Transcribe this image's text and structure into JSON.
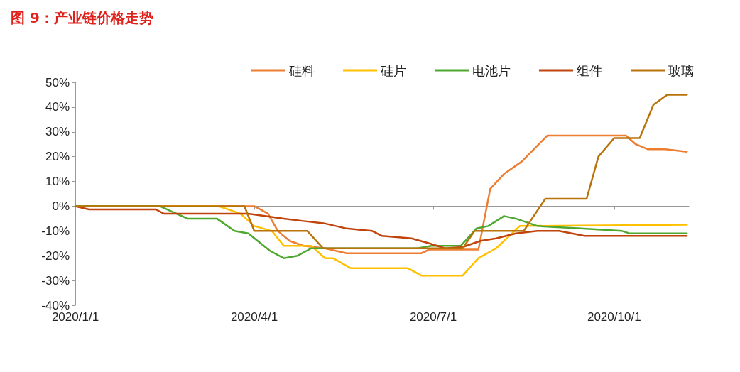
{
  "chart_data": {
    "type": "line",
    "title": "图 9：产业链价格走势",
    "xlim": [
      "2020-01-01",
      "2020-11-08"
    ],
    "xticks": [
      {
        "value": "2020-01-01",
        "label": "2020/1/1"
      },
      {
        "value": "2020-04-01",
        "label": "2020/4/1"
      },
      {
        "value": "2020-07-01",
        "label": "2020/7/1"
      },
      {
        "value": "2020-10-01",
        "label": "2020/10/1"
      }
    ],
    "ylim": [
      -40,
      50
    ],
    "yticks": [
      {
        "value": -40,
        "label": "-40%"
      },
      {
        "value": -30,
        "label": "-30%"
      },
      {
        "value": -20,
        "label": "-20%"
      },
      {
        "value": -10,
        "label": "-10%"
      },
      {
        "value": 0,
        "label": "0%"
      },
      {
        "value": 10,
        "label": "10%"
      },
      {
        "value": 20,
        "label": "20%"
      },
      {
        "value": 30,
        "label": "30%"
      },
      {
        "value": 40,
        "label": "40%"
      },
      {
        "value": 50,
        "label": "50%"
      }
    ],
    "legend": "top right",
    "marker": "none",
    "line_style": "solid",
    "series": [
      {
        "name": "硅料",
        "color": "#ed7d31",
        "x": [
          "2020-01-01",
          "2020-04-01",
          "2020-04-08",
          "2020-04-13",
          "2020-04-19",
          "2020-04-26",
          "2020-05-07",
          "2020-05-18",
          "2020-06-25",
          "2020-06-29",
          "2020-07-24",
          "2020-07-30",
          "2020-08-06",
          "2020-08-15",
          "2020-08-28",
          "2020-10-07",
          "2020-10-12",
          "2020-10-18",
          "2020-10-27",
          "2020-11-07"
        ],
        "values": [
          0,
          0,
          -3,
          -10,
          -14,
          -16,
          -17,
          -19,
          -19,
          -17.5,
          -17.5,
          7,
          13,
          18,
          28.5,
          28.5,
          25,
          23,
          23,
          22
        ]
      },
      {
        "name": "硅片",
        "color": "#ffc000",
        "x": [
          "2020-01-01",
          "2020-03-14",
          "2020-03-25",
          "2020-04-01",
          "2020-04-10",
          "2020-04-16",
          "2020-04-30",
          "2020-05-07",
          "2020-05-11",
          "2020-05-20",
          "2020-06-18",
          "2020-06-25",
          "2020-07-16",
          "2020-07-24",
          "2020-08-02",
          "2020-08-14",
          "2020-11-07"
        ],
        "values": [
          0,
          0,
          -3,
          -8,
          -10,
          -16,
          -16,
          -21,
          -21,
          -25,
          -25,
          -28,
          -28,
          -21,
          -17,
          -8,
          -7.5
        ]
      },
      {
        "name": "电池片",
        "color": "#4ea72e",
        "x": [
          "2020-01-01",
          "2020-02-13",
          "2020-02-27",
          "2020-03-13",
          "2020-03-22",
          "2020-03-29",
          "2020-04-09",
          "2020-04-16",
          "2020-04-23",
          "2020-04-30",
          "2020-06-23",
          "2020-06-30",
          "2020-07-15",
          "2020-07-23",
          "2020-07-29",
          "2020-08-06",
          "2020-08-12",
          "2020-08-23",
          "2020-09-14",
          "2020-10-05",
          "2020-10-09",
          "2020-11-07"
        ],
        "values": [
          0,
          0,
          -5,
          -5,
          -10,
          -11,
          -18,
          -21,
          -20,
          -17,
          -17,
          -16,
          -16,
          -9,
          -8,
          -4,
          -5,
          -8,
          -9,
          -10,
          -11,
          -11
        ]
      },
      {
        "name": "组件",
        "color": "#c0440c",
        "x": [
          "2020-01-01",
          "2020-01-08",
          "2020-02-11",
          "2020-02-15",
          "2020-03-29",
          "2020-04-16",
          "2020-04-26",
          "2020-05-07",
          "2020-05-18",
          "2020-05-31",
          "2020-06-05",
          "2020-06-20",
          "2020-06-29",
          "2020-07-07",
          "2020-07-16",
          "2020-07-25",
          "2020-08-02",
          "2020-08-12",
          "2020-08-23",
          "2020-09-03",
          "2020-09-16",
          "2020-11-07"
        ],
        "values": [
          0,
          -1.3,
          -1.3,
          -3,
          -3,
          -5,
          -6,
          -7,
          -9,
          -10,
          -12,
          -13,
          -15,
          -17,
          -16.5,
          -14,
          -13,
          -11,
          -10,
          -10,
          -12,
          -12
        ]
      },
      {
        "name": "玻璃",
        "color": "#b8730a",
        "x": [
          "2020-01-01",
          "2020-03-27",
          "2020-04-01",
          "2020-04-28",
          "2020-05-06",
          "2020-07-16",
          "2020-07-22",
          "2020-08-16",
          "2020-08-27",
          "2020-09-17",
          "2020-09-23",
          "2020-10-01",
          "2020-10-14",
          "2020-10-21",
          "2020-10-28",
          "2020-11-07"
        ],
        "values": [
          0,
          0,
          -10,
          -10,
          -17,
          -17,
          -10,
          -10,
          3,
          3,
          20,
          27.5,
          27.5,
          41,
          45,
          45
        ]
      }
    ]
  }
}
